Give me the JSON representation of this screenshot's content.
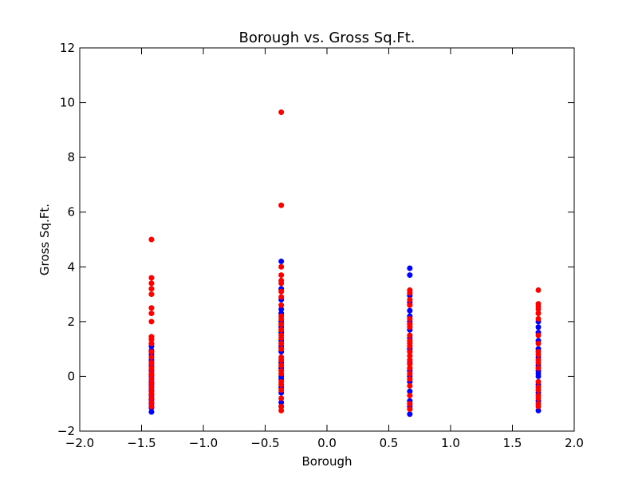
{
  "chart_data": {
    "type": "scatter",
    "title": "Borough vs. Gross Sq.Ft.",
    "xlabel": "Borough",
    "ylabel": "Gross Sq.Ft.",
    "xlim": [
      -2.0,
      2.0
    ],
    "ylim": [
      -2,
      12
    ],
    "x_ticks": [
      "−2.0",
      "−1.5",
      "−1.0",
      "−0.5",
      "0.0",
      "0.5",
      "1.0",
      "1.5",
      "2.0"
    ],
    "y_ticks": [
      "−2",
      "0",
      "2",
      "4",
      "6",
      "8",
      "10",
      "12"
    ],
    "grid": false,
    "series": [
      {
        "color": "#0000ff",
        "points": [
          [
            -1.42,
            -1.3
          ],
          [
            -1.42,
            -1.15
          ],
          [
            -1.42,
            -1.0
          ],
          [
            -1.42,
            -0.85
          ],
          [
            -1.42,
            -0.7
          ],
          [
            -1.42,
            -0.5
          ],
          [
            -1.42,
            -0.3
          ],
          [
            -1.42,
            -0.2
          ],
          [
            -1.42,
            0.0
          ],
          [
            -1.42,
            0.2
          ],
          [
            -1.42,
            0.4
          ],
          [
            -1.42,
            0.6
          ],
          [
            -1.42,
            0.8
          ],
          [
            -1.42,
            0.95
          ],
          [
            -1.42,
            1.1
          ],
          [
            -0.37,
            -1.1
          ],
          [
            -0.37,
            -0.95
          ],
          [
            -0.37,
            -0.6
          ],
          [
            -0.37,
            -0.4
          ],
          [
            -0.37,
            -0.1
          ],
          [
            -0.37,
            0.0
          ],
          [
            -0.37,
            0.3
          ],
          [
            -0.37,
            0.5
          ],
          [
            -0.37,
            0.9
          ],
          [
            -0.37,
            1.1
          ],
          [
            -0.37,
            1.3
          ],
          [
            -0.37,
            1.6
          ],
          [
            -0.37,
            1.8
          ],
          [
            -0.37,
            2.0
          ],
          [
            -0.37,
            2.3
          ],
          [
            -0.37,
            2.45
          ],
          [
            -0.37,
            2.8
          ],
          [
            -0.37,
            3.2
          ],
          [
            -0.37,
            4.2
          ],
          [
            0.67,
            -1.38
          ],
          [
            0.67,
            -1.1
          ],
          [
            0.67,
            -0.9
          ],
          [
            0.67,
            -0.55
          ],
          [
            0.67,
            -0.2
          ],
          [
            0.67,
            0.0
          ],
          [
            0.67,
            0.2
          ],
          [
            0.67,
            0.5
          ],
          [
            0.67,
            1.0
          ],
          [
            0.67,
            1.4
          ],
          [
            0.67,
            1.7
          ],
          [
            0.67,
            2.0
          ],
          [
            0.67,
            2.2
          ],
          [
            0.67,
            2.4
          ],
          [
            0.67,
            2.7
          ],
          [
            0.67,
            2.95
          ],
          [
            0.67,
            3.7
          ],
          [
            0.67,
            3.95
          ],
          [
            1.71,
            -1.25
          ],
          [
            1.71,
            -0.9
          ],
          [
            1.71,
            -0.6
          ],
          [
            1.71,
            -0.3
          ],
          [
            1.71,
            0.0
          ],
          [
            1.71,
            0.1
          ],
          [
            1.71,
            0.2
          ],
          [
            1.71,
            0.4
          ],
          [
            1.71,
            0.7
          ],
          [
            1.71,
            1.0
          ],
          [
            1.71,
            1.3
          ],
          [
            1.71,
            1.6
          ],
          [
            1.71,
            1.8
          ],
          [
            1.71,
            2.0
          ]
        ]
      },
      {
        "color": "#ff0000",
        "points": [
          [
            -1.42,
            -1.1
          ],
          [
            -1.42,
            -0.95
          ],
          [
            -1.42,
            -0.8
          ],
          [
            -1.42,
            -0.65
          ],
          [
            -1.42,
            -0.55
          ],
          [
            -1.42,
            -0.4
          ],
          [
            -1.42,
            -0.25
          ],
          [
            -1.42,
            -0.1
          ],
          [
            -1.42,
            0.05
          ],
          [
            -1.42,
            0.1
          ],
          [
            -1.42,
            0.25
          ],
          [
            -1.42,
            0.35
          ],
          [
            -1.42,
            0.5
          ],
          [
            -1.42,
            0.7
          ],
          [
            -1.42,
            0.9
          ],
          [
            -1.42,
            1.2
          ],
          [
            -1.42,
            1.35
          ],
          [
            -1.42,
            1.45
          ],
          [
            -1.42,
            2.0
          ],
          [
            -1.42,
            2.3
          ],
          [
            -1.42,
            2.5
          ],
          [
            -1.42,
            3.0
          ],
          [
            -1.42,
            3.2
          ],
          [
            -1.42,
            3.4
          ],
          [
            -1.42,
            3.6
          ],
          [
            -1.42,
            5.0
          ],
          [
            -0.37,
            -1.25
          ],
          [
            -0.37,
            -1.1
          ],
          [
            -0.37,
            -0.8
          ],
          [
            -0.37,
            -0.5
          ],
          [
            -0.37,
            -0.3
          ],
          [
            -0.37,
            -0.2
          ],
          [
            -0.37,
            0.1
          ],
          [
            -0.37,
            0.2
          ],
          [
            -0.37,
            0.4
          ],
          [
            -0.37,
            0.6
          ],
          [
            -0.37,
            0.7
          ],
          [
            -0.37,
            1.0
          ],
          [
            -0.37,
            1.2
          ],
          [
            -0.37,
            1.4
          ],
          [
            -0.37,
            1.5
          ],
          [
            -0.37,
            1.7
          ],
          [
            -0.37,
            1.9
          ],
          [
            -0.37,
            2.1
          ],
          [
            -0.37,
            2.2
          ],
          [
            -0.37,
            2.6
          ],
          [
            -0.37,
            2.9
          ],
          [
            -0.37,
            3.1
          ],
          [
            -0.37,
            3.4
          ],
          [
            -0.37,
            3.5
          ],
          [
            -0.37,
            3.7
          ],
          [
            -0.37,
            4.0
          ],
          [
            -0.37,
            6.25
          ],
          [
            -0.37,
            9.65
          ],
          [
            0.67,
            -1.2
          ],
          [
            0.67,
            -1.0
          ],
          [
            0.67,
            -0.7
          ],
          [
            0.67,
            -0.35
          ],
          [
            0.67,
            -0.1
          ],
          [
            0.67,
            0.1
          ],
          [
            0.67,
            0.3
          ],
          [
            0.67,
            0.45
          ],
          [
            0.67,
            0.6
          ],
          [
            0.67,
            0.75
          ],
          [
            0.67,
            0.9
          ],
          [
            0.67,
            1.1
          ],
          [
            0.67,
            1.2
          ],
          [
            0.67,
            1.3
          ],
          [
            0.67,
            1.5
          ],
          [
            0.67,
            1.8
          ],
          [
            0.67,
            1.9
          ],
          [
            0.67,
            2.1
          ],
          [
            0.67,
            2.6
          ],
          [
            0.67,
            2.8
          ],
          [
            0.67,
            3.05
          ],
          [
            0.67,
            3.15
          ],
          [
            1.71,
            -1.1
          ],
          [
            1.71,
            -1.0
          ],
          [
            1.71,
            -0.8
          ],
          [
            1.71,
            -0.7
          ],
          [
            1.71,
            -0.5
          ],
          [
            1.71,
            -0.4
          ],
          [
            1.71,
            -0.2
          ],
          [
            1.71,
            0.3
          ],
          [
            1.71,
            0.5
          ],
          [
            1.71,
            0.6
          ],
          [
            1.71,
            0.8
          ],
          [
            1.71,
            0.9
          ],
          [
            1.71,
            1.2
          ],
          [
            1.71,
            1.5
          ],
          [
            1.71,
            2.1
          ],
          [
            1.71,
            2.3
          ],
          [
            1.71,
            2.45
          ],
          [
            1.71,
            2.55
          ],
          [
            1.71,
            2.65
          ],
          [
            1.71,
            3.15
          ]
        ]
      }
    ]
  }
}
